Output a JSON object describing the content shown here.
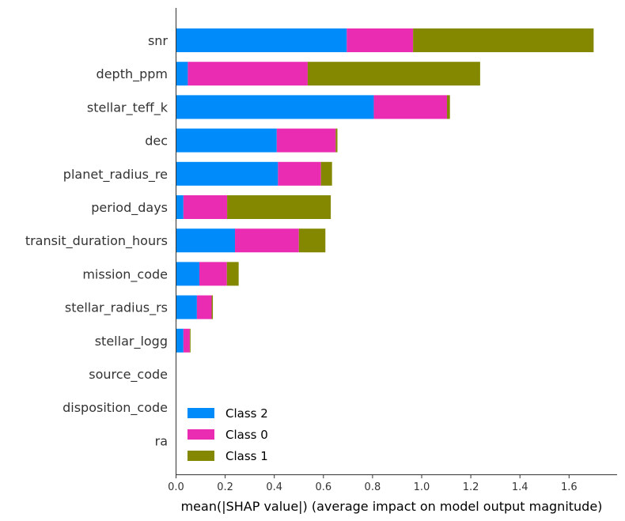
{
  "chart_data": {
    "type": "bar",
    "orientation": "horizontal",
    "stacked": true,
    "categories": [
      "snr",
      "depth_ppm",
      "stellar_teff_k",
      "dec",
      "planet_radius_re",
      "period_days",
      "transit_duration_hours",
      "mission_code",
      "stellar_radius_rs",
      "stellar_logg",
      "source_code",
      "disposition_code",
      "ra"
    ],
    "series": [
      {
        "name": "Class 2",
        "color": "#008bfb",
        "values": [
          0.695,
          0.048,
          0.805,
          0.41,
          0.415,
          0.03,
          0.24,
          0.095,
          0.085,
          0.03,
          0,
          0,
          0
        ]
      },
      {
        "name": "Class 0",
        "color": "#e92cb2",
        "values": [
          0.27,
          0.488,
          0.298,
          0.24,
          0.175,
          0.178,
          0.26,
          0.112,
          0.06,
          0.026,
          0,
          0,
          0
        ]
      },
      {
        "name": "Class 1",
        "color": "#838800",
        "values": [
          0.735,
          0.702,
          0.012,
          0.007,
          0.045,
          0.422,
          0.108,
          0.048,
          0.005,
          0.003,
          0,
          0,
          0
        ]
      }
    ],
    "xlabel": "mean(|SHAP value|) (average impact on model output magnitude)",
    "ylabel": "",
    "title": "",
    "xlim": [
      0,
      1.8
    ],
    "xticks": [
      "0.0",
      "0.2",
      "0.4",
      "0.6",
      "0.8",
      "1.0",
      "1.2",
      "1.4",
      "1.6"
    ],
    "grid": false,
    "legend_position": "lower-left-inside"
  }
}
